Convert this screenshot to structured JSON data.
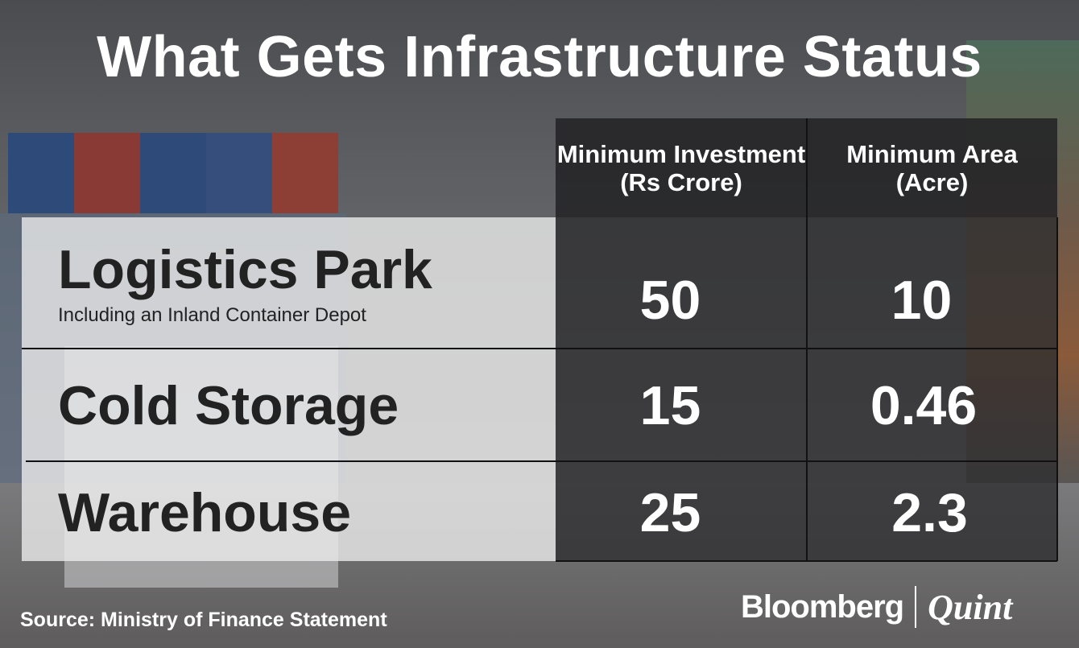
{
  "title": "What Gets Infrastructure Status",
  "table": {
    "columns": [
      "Minimum Investment (Rs Crore)",
      "Minimum Area (Acre)"
    ],
    "rows": [
      {
        "name": "Logistics Park",
        "note": "Including an Inland Container Depot",
        "investment": "50",
        "area": "10"
      },
      {
        "name": "Cold Storage",
        "investment": "15",
        "area": "0.46"
      },
      {
        "name": "Warehouse",
        "investment": "25",
        "area": "2.3"
      }
    ]
  },
  "source": "Source: Ministry of Finance Statement",
  "logo": {
    "part1": "Bloomberg",
    "part2": "Quint"
  },
  "colors": {
    "header_bg": "#232325",
    "left_panel": "#ebebeb",
    "text_dark": "#222222",
    "text_light": "#ffffff"
  }
}
